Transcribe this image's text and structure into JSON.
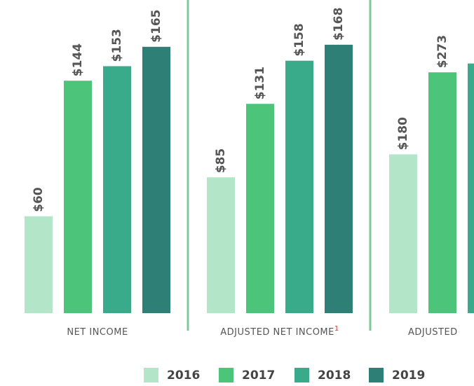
{
  "chart_data": [
    {
      "type": "bar",
      "title": "NET INCOME",
      "categories": [
        "2016",
        "2017",
        "2018",
        "2019"
      ],
      "values": [
        60,
        144,
        153,
        165
      ],
      "value_labels": [
        "$60",
        "$144",
        "$153",
        "$165"
      ],
      "colors": [
        "#b3e6c8",
        "#4cc47a",
        "#3aab8a",
        "#2e8077"
      ],
      "ylim": [
        0,
        194
      ]
    },
    {
      "type": "bar",
      "title": "ADJUSTED NET INCOME",
      "footnote": "1",
      "categories": [
        "2016",
        "2017",
        "2018",
        "2019"
      ],
      "values": [
        85,
        131,
        158,
        168
      ],
      "value_labels": [
        "$85",
        "$131",
        "$158",
        "$168"
      ],
      "colors": [
        "#b3e6c8",
        "#4cc47a",
        "#3aab8a",
        "#2e8077"
      ],
      "ylim": [
        0,
        196
      ]
    },
    {
      "type": "bar",
      "title": "ADJUSTED",
      "categories": [
        "2016",
        "2017",
        "2018"
      ],
      "values": [
        180,
        273,
        283
      ],
      "value_labels": [
        "$180",
        "$273",
        null
      ],
      "colors": [
        "#b3e6c8",
        "#4cc47a",
        "#3aab8a"
      ],
      "ylim": [
        0,
        355
      ]
    }
  ],
  "legend": {
    "items": [
      {
        "name": "2016",
        "color": "#b3e6c8"
      },
      {
        "name": "2017",
        "color": "#4cc47a"
      },
      {
        "name": "2018",
        "color": "#3aab8a"
      },
      {
        "name": "2019",
        "color": "#2e8077"
      }
    ]
  }
}
